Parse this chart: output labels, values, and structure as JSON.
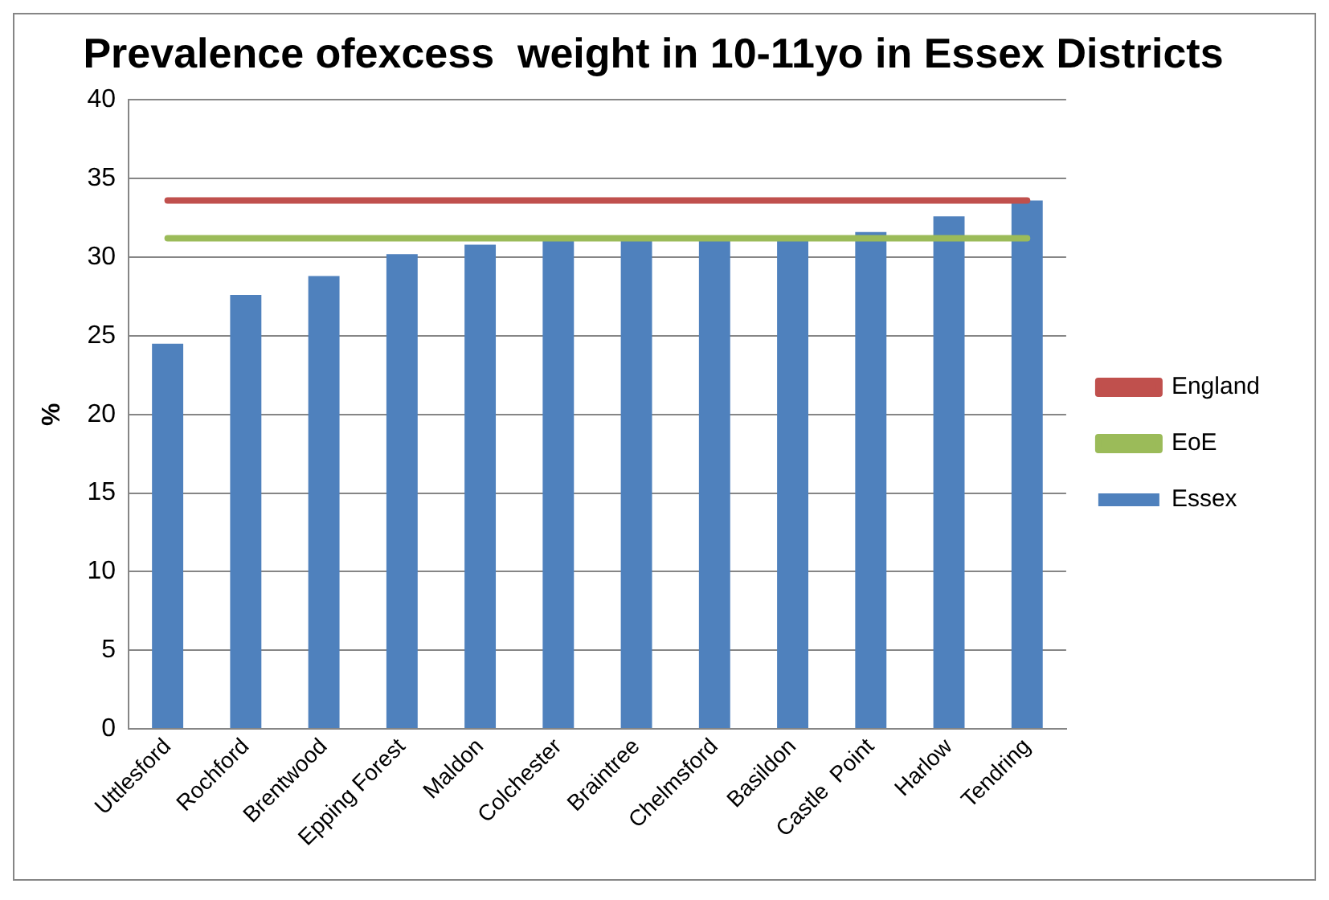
{
  "chart_data": {
    "type": "bar",
    "title": "Prevalence ofexcess  weight in 10-11yo in Essex Districts",
    "ylabel": "%",
    "categories": [
      "Uttlesford",
      "Rochford",
      "Brentwood",
      "Epping Forest",
      "Maldon",
      "Colchester",
      "Braintree",
      "Chelmsford",
      "Basildon",
      "Castle  Point",
      "Harlow",
      "Tendring"
    ],
    "series": [
      {
        "name": "Essex",
        "color": "#4f81bd",
        "values": [
          24.5,
          27.6,
          28.8,
          30.2,
          30.8,
          31.2,
          31.2,
          31.2,
          31.2,
          31.6,
          32.6,
          33.6
        ]
      },
      {
        "name": "England",
        "type": "line",
        "color": "#c0504d",
        "values": [
          33.6,
          33.6,
          33.6,
          33.6,
          33.6,
          33.6,
          33.6,
          33.6,
          33.6,
          33.6,
          33.6,
          33.6
        ]
      },
      {
        "name": "EoE",
        "type": "line",
        "color": "#9bbb59",
        "values": [
          31.2,
          31.2,
          31.2,
          31.2,
          31.2,
          31.2,
          31.2,
          31.2,
          31.2,
          31.2,
          31.2,
          31.2
        ]
      }
    ],
    "ylim": [
      0,
      40
    ],
    "yticks": [
      0,
      5,
      10,
      15,
      20,
      25,
      30,
      35,
      40
    ],
    "grid": "y",
    "legend": "right"
  }
}
